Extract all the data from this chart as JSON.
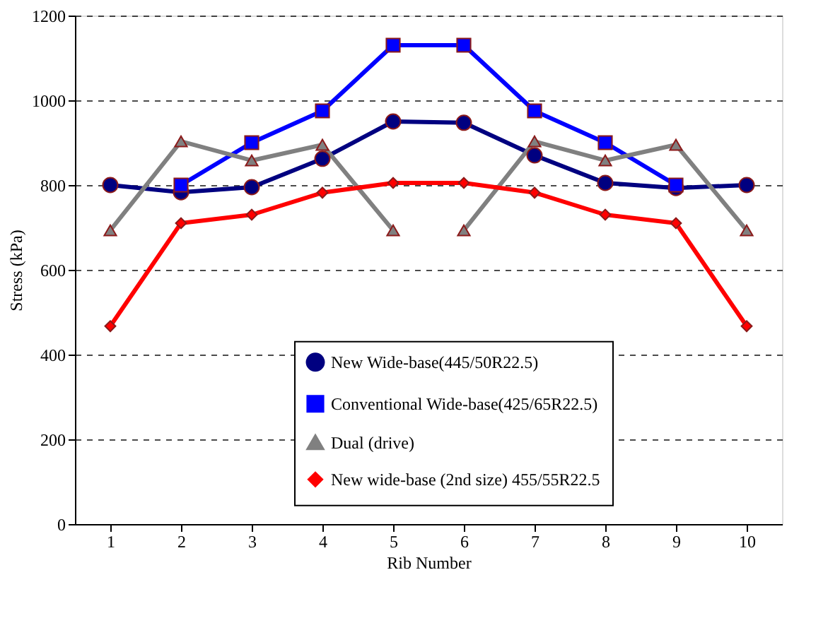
{
  "chart_data": {
    "type": "line",
    "xlabel": "Rib Number",
    "ylabel": "Stress (kPa)",
    "x": [
      1,
      2,
      3,
      4,
      5,
      6,
      7,
      8,
      9,
      10
    ],
    "xlim": [
      0.5,
      10.5
    ],
    "xticks": [
      1,
      2,
      3,
      4,
      5,
      6,
      7,
      8,
      9,
      10
    ],
    "ylim": [
      0,
      1200
    ],
    "yticks": [
      0,
      200,
      400,
      600,
      800,
      1000,
      1200
    ],
    "grid": "y",
    "legend": "bottom",
    "line_style": "solid",
    "series": [
      {
        "name": "New Wide-base(445/50R22.5)",
        "color": "#000080",
        "marker": "circle",
        "values": [
          800,
          783,
          795,
          862,
          950,
          947,
          870,
          805,
          793,
          800
        ]
      },
      {
        "name": "Conventional Wide-base(425/65R22.5)",
        "color": "#0000ff",
        "marker": "square",
        "values": [
          null,
          800,
          900,
          975,
          1130,
          1130,
          975,
          900,
          800,
          null
        ]
      },
      {
        "name": "Dual (drive)",
        "color": "#808080",
        "marker": "triangle",
        "x": [
          1,
          2,
          3,
          4,
          5,
          5.5,
          6,
          7,
          8,
          9,
          10
        ],
        "values": [
          693,
          903,
          858,
          895,
          693,
          null,
          693,
          903,
          858,
          895,
          693
        ]
      },
      {
        "name": "New wide-base (2nd size) 455/55R22.5",
        "color": "#ff0000",
        "marker": "diamond",
        "values": [
          467,
          710,
          730,
          782,
          805,
          805,
          782,
          730,
          710,
          467
        ]
      }
    ]
  }
}
